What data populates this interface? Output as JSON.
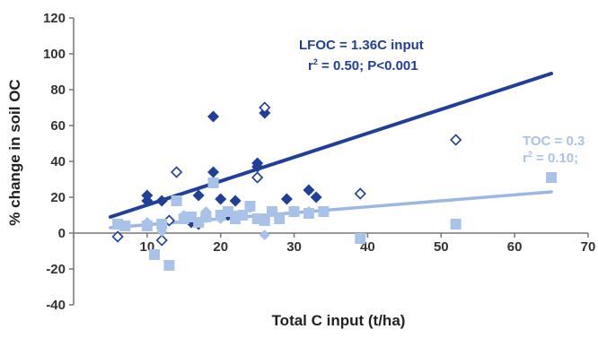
{
  "chart_data": {
    "type": "scatter",
    "title": "",
    "xlabel": "Total C input (t/ha)",
    "ylabel": "% change in soil OC",
    "xlim": [
      0,
      70
    ],
    "ylim": [
      -40,
      120
    ],
    "x_ticks": [
      "0",
      "10",
      "20",
      "30",
      "40",
      "50",
      "60",
      "70"
    ],
    "y_ticks": [
      "-40",
      "-20",
      "0",
      "20",
      "40",
      "60",
      "80",
      "100",
      "120"
    ],
    "grid": false,
    "legend": "none",
    "colors": {
      "lfoc": "#1f3f9a",
      "lfoc_open": "#1f3f9a",
      "toc": "#a9c2e8",
      "toc_line": "#9db7e3",
      "axis": "#777777"
    },
    "series": [
      {
        "marker": "filled-diamond",
        "points": [
          [
            10,
            21
          ],
          [
            10,
            18
          ],
          [
            12,
            18
          ],
          [
            14,
            19
          ],
          [
            16,
            6
          ],
          [
            17,
            21
          ],
          [
            17,
            5
          ],
          [
            18,
            9
          ],
          [
            19,
            65
          ],
          [
            19,
            34
          ],
          [
            20,
            19
          ],
          [
            21,
            10
          ],
          [
            22,
            18
          ],
          [
            25,
            37
          ],
          [
            25,
            39
          ],
          [
            26,
            67
          ],
          [
            29,
            19
          ],
          [
            32,
            24
          ],
          [
            33,
            20
          ]
        ]
      },
      {
        "marker": "open-diamond",
        "points": [
          [
            6,
            -2
          ],
          [
            12,
            -4
          ],
          [
            13,
            7
          ],
          [
            14,
            34
          ],
          [
            25,
            31
          ],
          [
            26,
            70
          ],
          [
            39,
            22
          ],
          [
            52,
            52
          ]
        ]
      },
      {
        "marker": "filled-square-light",
        "points": [
          [
            6,
            5
          ],
          [
            7,
            4
          ],
          [
            10,
            4
          ],
          [
            11,
            -12
          ],
          [
            12,
            5
          ],
          [
            13,
            -18
          ],
          [
            14,
            18
          ],
          [
            15,
            8
          ],
          [
            16,
            9
          ],
          [
            17,
            6
          ],
          [
            18,
            9
          ],
          [
            19,
            28
          ],
          [
            20,
            10
          ],
          [
            21,
            12
          ],
          [
            22,
            8
          ],
          [
            23,
            10
          ],
          [
            24,
            15
          ],
          [
            25,
            8
          ],
          [
            26,
            7
          ],
          [
            27,
            12
          ],
          [
            28,
            8
          ],
          [
            30,
            12
          ],
          [
            32,
            11
          ],
          [
            34,
            12
          ],
          [
            39,
            -3
          ],
          [
            52,
            5
          ],
          [
            65,
            31
          ]
        ]
      },
      {
        "marker": "light-diamond",
        "points": [
          [
            10,
            6
          ],
          [
            12,
            1
          ],
          [
            15,
            10
          ],
          [
            18,
            12
          ],
          [
            20,
            8
          ],
          [
            22,
            10
          ],
          [
            24,
            14
          ],
          [
            26,
            -1
          ],
          [
            30,
            12
          ],
          [
            32,
            12
          ]
        ]
      }
    ],
    "trendlines": [
      {
        "series": "LFOC",
        "x": [
          5,
          65
        ],
        "y": [
          9,
          89
        ]
      },
      {
        "series": "TOC",
        "x": [
          5,
          65
        ],
        "y": [
          3,
          23
        ]
      }
    ],
    "annotations": {
      "lfoc_line1": "LFOC = 1.36C input",
      "lfoc_line2_pre": "r",
      "lfoc_line2_sup": "2",
      "lfoc_line2_post": " = 0.50; P<0.001",
      "toc_line1": "TOC = 0.3",
      "toc_line2_pre": "r",
      "toc_line2_sup": "2",
      "toc_line2_post": " = 0.10;"
    }
  }
}
